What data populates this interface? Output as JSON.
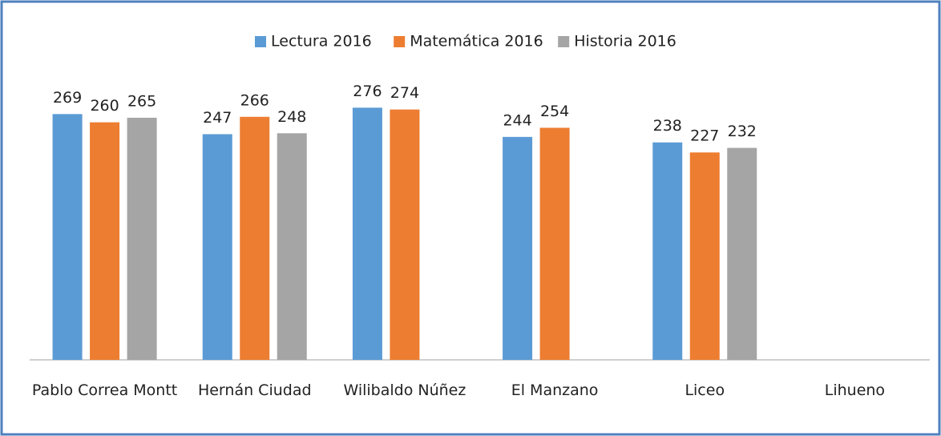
{
  "chart_data": {
    "type": "bar",
    "categories": [
      "Pablo Correa Montt",
      "Hernán Ciudad",
      "Wilibaldo Núñez",
      "El Manzano",
      "Liceo",
      "Lihueno"
    ],
    "series": [
      {
        "name": "Lectura 2016",
        "color": "#5b9bd5",
        "values": [
          269,
          247,
          276,
          244,
          238,
          null
        ]
      },
      {
        "name": "Matemática 2016",
        "color": "#ed7d31",
        "values": [
          260,
          266,
          274,
          254,
          227,
          null
        ]
      },
      {
        "name": "Historia 2016",
        "color": "#a5a5a5",
        "values": [
          265,
          248,
          null,
          null,
          232,
          null
        ]
      }
    ],
    "ylim": [
      0,
      300
    ],
    "legend": "top"
  }
}
